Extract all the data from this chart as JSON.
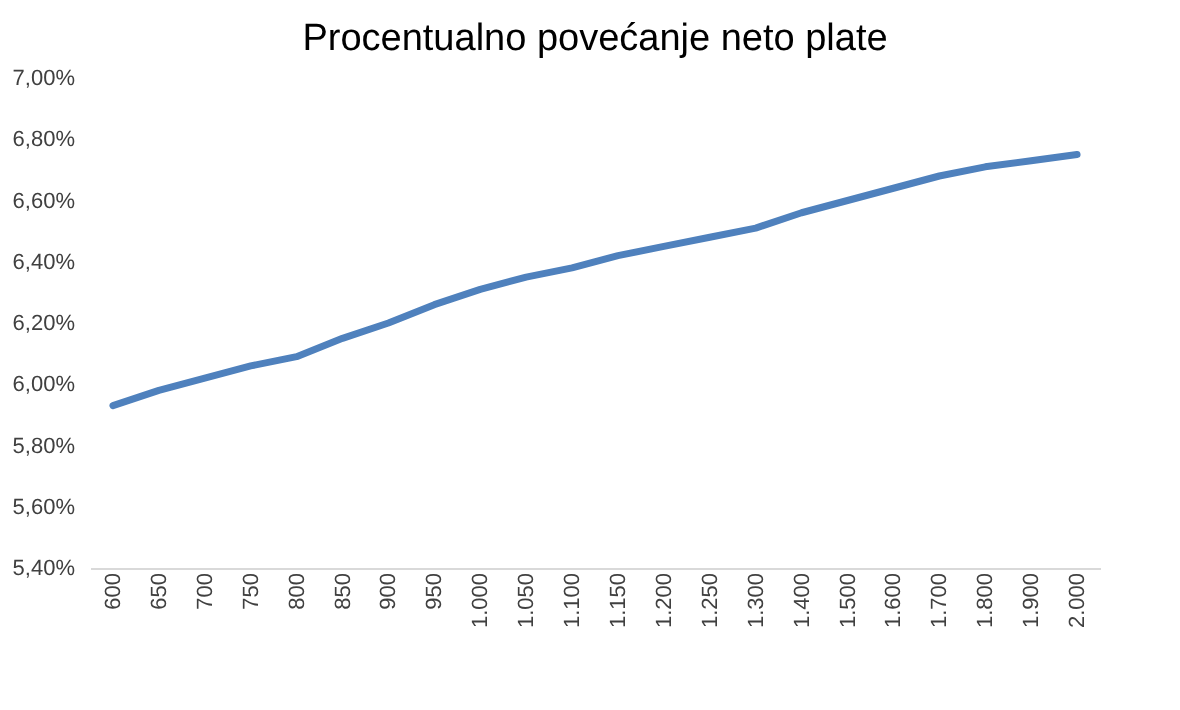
{
  "chart_data": {
    "type": "line",
    "title": "Procentualno povećanje neto plate",
    "categories": [
      "600",
      "650",
      "700",
      "750",
      "800",
      "850",
      "900",
      "950",
      "1.000",
      "1.050",
      "1.100",
      "1.150",
      "1.200",
      "1.250",
      "1.300",
      "1.400",
      "1.500",
      "1.600",
      "1.700",
      "1.800",
      "1.900",
      "2.000"
    ],
    "series": [
      {
        "color": "#4f81bd",
        "values": [
          5.93,
          5.98,
          6.02,
          6.06,
          6.09,
          6.15,
          6.2,
          6.26,
          6.31,
          6.35,
          6.38,
          6.42,
          6.45,
          6.48,
          6.51,
          6.56,
          6.6,
          6.64,
          6.68,
          6.71,
          6.73,
          6.75
        ]
      }
    ],
    "ylim": [
      5.4,
      7.0
    ],
    "yticks": [
      {
        "value": 5.4,
        "label": "5,40%"
      },
      {
        "value": 5.6,
        "label": "5,60%"
      },
      {
        "value": 5.8,
        "label": "5,80%"
      },
      {
        "value": 6.0,
        "label": "6,00%"
      },
      {
        "value": 6.2,
        "label": "6,20%"
      },
      {
        "value": 6.4,
        "label": "6,40%"
      },
      {
        "value": 6.6,
        "label": "6,60%"
      },
      {
        "value": 6.8,
        "label": "6,80%"
      },
      {
        "value": 7.0,
        "label": "7,00%"
      }
    ],
    "grid": false,
    "marker": "none",
    "line_style": "solid"
  }
}
